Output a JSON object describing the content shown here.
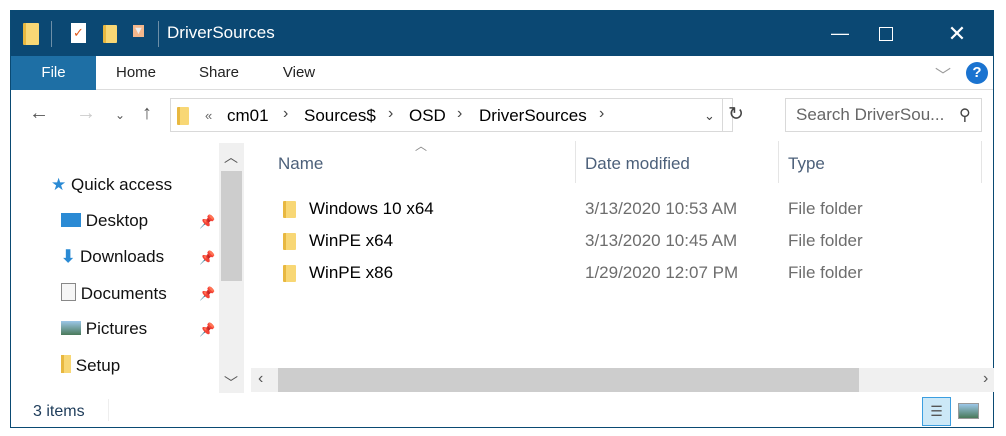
{
  "window": {
    "title": "DriverSources",
    "minimize_icon": "minimize-icon",
    "maximize_icon": "maximize-icon",
    "close_icon": "close-icon"
  },
  "ribbon": {
    "tabs": [
      {
        "label": "File"
      },
      {
        "label": "Home"
      },
      {
        "label": "Share"
      },
      {
        "label": "View"
      }
    ],
    "help": "?"
  },
  "address": {
    "overflow": "«",
    "crumbs": [
      "cm01",
      "Sources$",
      "OSD",
      "DriverSources"
    ]
  },
  "search": {
    "placeholder": "Search DriverSou..."
  },
  "sidebar": {
    "items": [
      {
        "label": "Quick access"
      },
      {
        "label": "Desktop"
      },
      {
        "label": "Downloads"
      },
      {
        "label": "Documents"
      },
      {
        "label": "Pictures"
      },
      {
        "label": "Setup"
      }
    ]
  },
  "columns": {
    "name": "Name",
    "date": "Date modified",
    "type": "Type"
  },
  "files": [
    {
      "name": "Windows 10 x64",
      "date": "3/13/2020 10:53 AM",
      "type": "File folder"
    },
    {
      "name": "WinPE x64",
      "date": "3/13/2020 10:45 AM",
      "type": "File folder"
    },
    {
      "name": "WinPE x86",
      "date": "1/29/2020 12:07 PM",
      "type": "File folder"
    }
  ],
  "status": {
    "count": "3 items"
  },
  "colors": {
    "titlebar": "#0b4873",
    "file_tab": "#1e6fa5",
    "help": "#1a73d0"
  }
}
